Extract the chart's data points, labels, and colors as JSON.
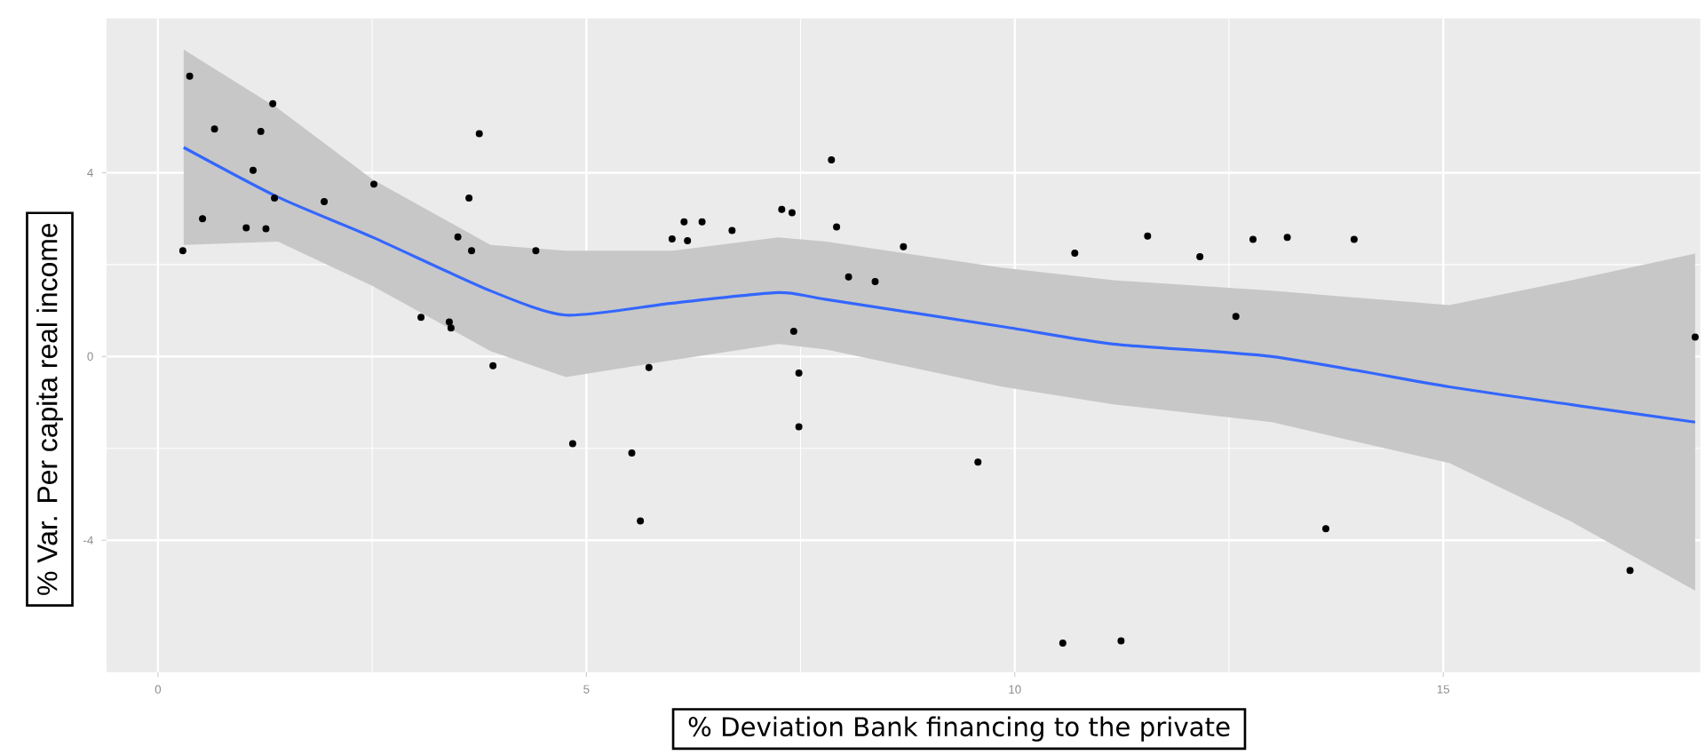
{
  "chart_data": {
    "type": "scatter",
    "xlabel": "% Deviation Bank financing to the private",
    "ylabel": "% Var. Per capita real income",
    "xlim": [
      -0.6,
      18
    ],
    "ylim": [
      -6.87,
      7.36
    ],
    "xticks": [
      0,
      5,
      10,
      15
    ],
    "yticks": [
      -4,
      0,
      4
    ],
    "grid": true,
    "series": [
      {
        "color": "#000000",
        "marker": "circle",
        "x": [
          0.37,
          1.34,
          0.66,
          1.2,
          3.75,
          1.11,
          2.52,
          3.63,
          1.36,
          1.94,
          0.52,
          1.03,
          1.26,
          3.5,
          0.29,
          3.66,
          4.41,
          3.07,
          3.4,
          3.42,
          3.91,
          4.84,
          7.86,
          7.28,
          7.4,
          6.14,
          6.35,
          7.92,
          6.7,
          6.0,
          6.18,
          8.7,
          10.7,
          8.06,
          8.37,
          7.42,
          5.73,
          7.48,
          7.48,
          5.53,
          9.57,
          5.63,
          10.56,
          11.55,
          12.16,
          12.78,
          13.18,
          13.96,
          12.58,
          17.94,
          13.63,
          17.18,
          11.24
        ],
        "values": [
          6.1,
          5.5,
          4.95,
          4.9,
          4.85,
          4.05,
          3.75,
          3.45,
          3.45,
          3.37,
          3.0,
          2.8,
          2.78,
          2.6,
          2.3,
          2.3,
          2.3,
          0.85,
          0.75,
          0.62,
          -0.2,
          -1.9,
          4.28,
          3.2,
          3.13,
          2.93,
          2.93,
          2.82,
          2.74,
          2.56,
          2.52,
          2.39,
          2.25,
          1.73,
          1.63,
          0.55,
          -0.24,
          -0.36,
          -1.53,
          -2.1,
          -2.3,
          -3.58,
          -6.24,
          2.62,
          2.17,
          2.55,
          2.59,
          2.55,
          0.87,
          0.42,
          -3.75,
          -4.66,
          -6.19
        ]
      },
      {
        "type": "line",
        "color": "#3366ff",
        "line_style": "solid",
        "marker": "none",
        "x": [
          0.3,
          1.4,
          2.5,
          3.88,
          4.76,
          6.0,
          7.24,
          7.8,
          9.86,
          11.15,
          13.0,
          15.07,
          16.5,
          17.94
        ],
        "values": [
          4.55,
          3.47,
          2.6,
          1.43,
          0.9,
          1.16,
          1.39,
          1.24,
          0.65,
          0.27,
          0.0,
          -0.66,
          -1.05,
          -1.43
        ],
        "upper": [
          6.68,
          5.4,
          3.86,
          2.43,
          2.3,
          2.3,
          2.59,
          2.5,
          1.93,
          1.66,
          1.43,
          1.12,
          1.66,
          2.24
        ],
        "lower": [
          2.43,
          2.5,
          1.54,
          0.12,
          -0.45,
          -0.08,
          0.27,
          0.15,
          -0.66,
          -1.04,
          -1.43,
          -2.32,
          -3.6,
          -5.1
        ]
      }
    ]
  }
}
